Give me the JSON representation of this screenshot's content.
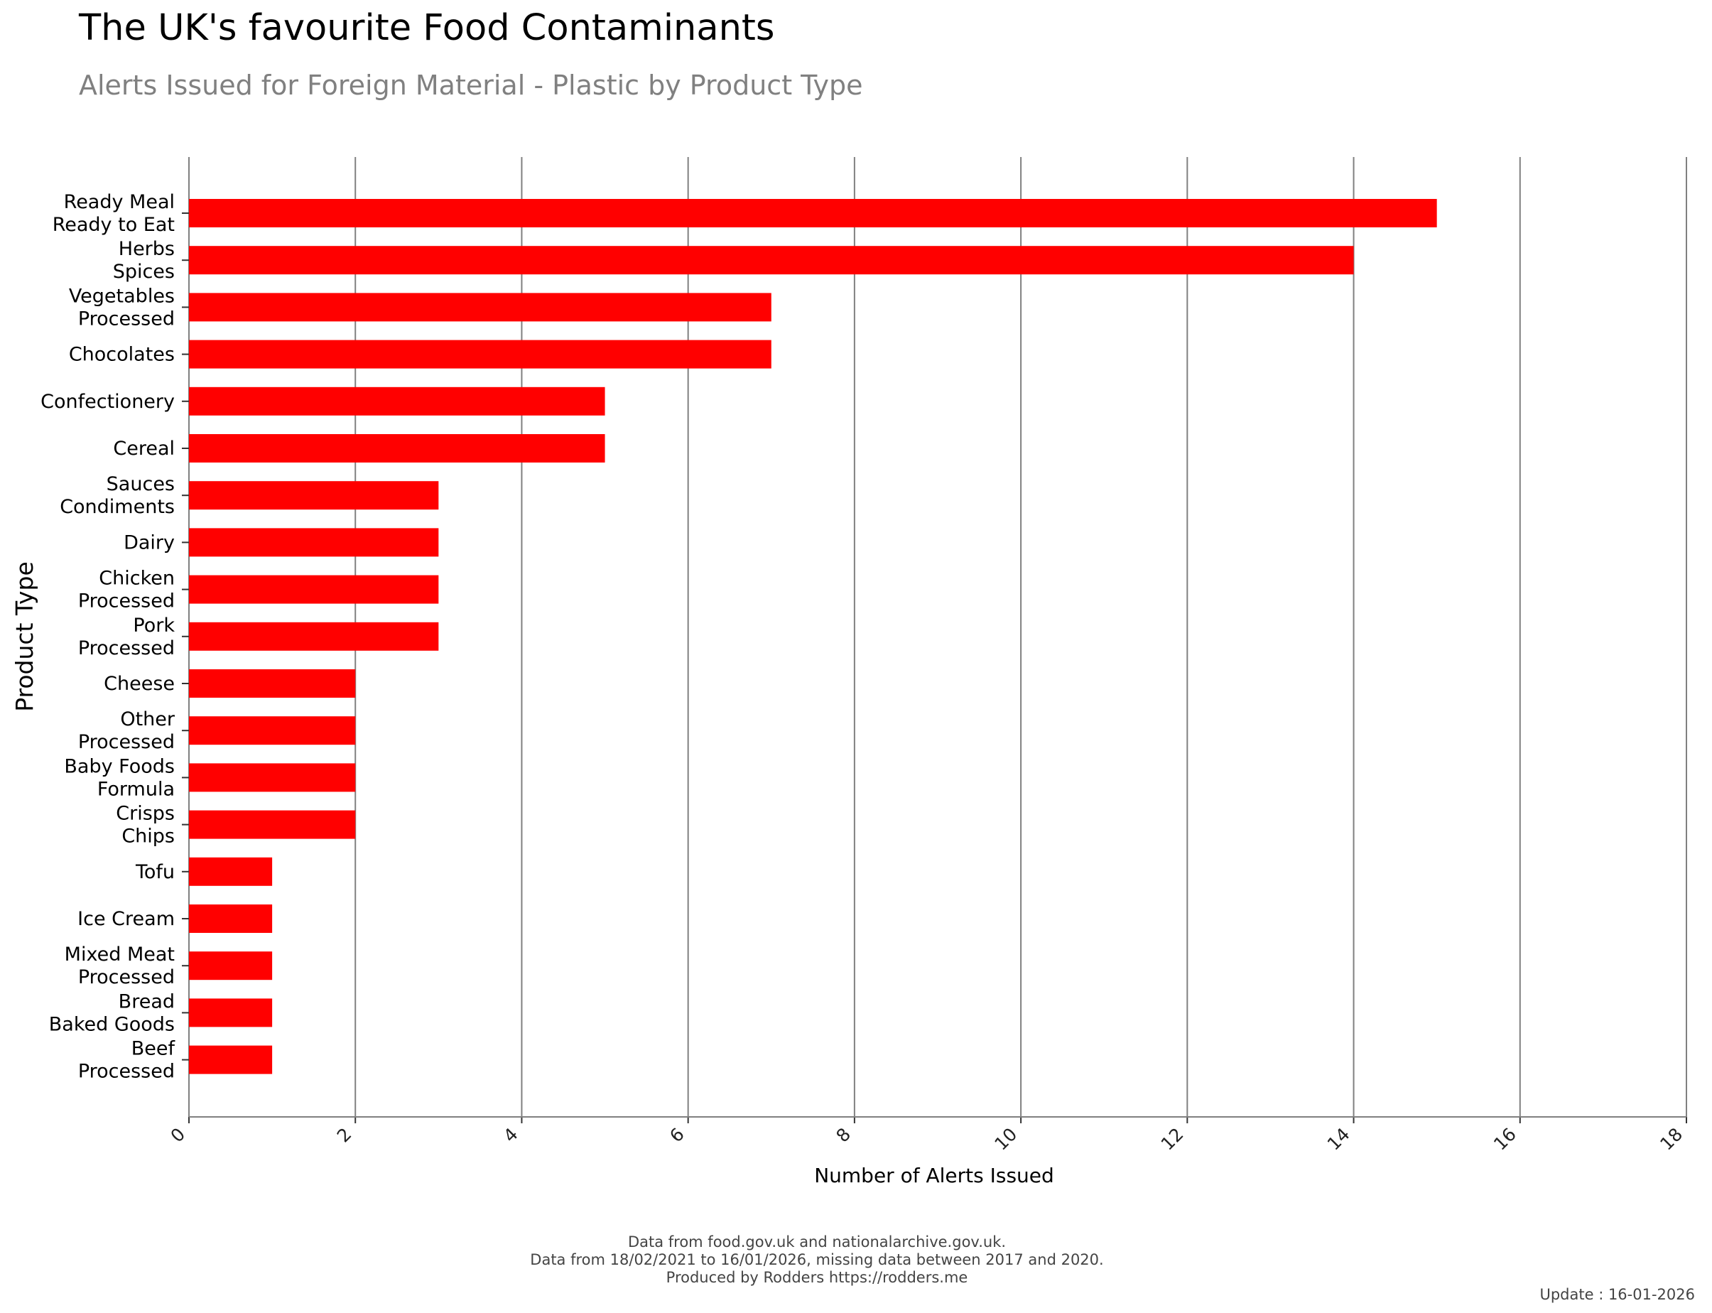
{
  "header": {
    "title": "The UK's favourite Food Contaminants",
    "subtitle": "Alerts Issued for Foreign Material - Plastic by Product Type"
  },
  "footer": {
    "line1": "Data from food.gov.uk and nationalarchive.gov.uk.",
    "line2": "Data from 18/02/2021 to 16/01/2026, missing data between 2017 and 2020.",
    "line3": "Produced by Rodders https://rodders.me",
    "update": "Update : 16-01-2026"
  },
  "colors": {
    "bar": "#ff0000",
    "grid": "#808080",
    "title": "#000000",
    "subtitle": "#808080"
  },
  "chart_data": {
    "type": "bar",
    "orientation": "horizontal",
    "title": "The UK's favourite Food Contaminants",
    "subtitle": "Alerts Issued for Foreign Material - Plastic by Product Type",
    "xlabel": "Number of Alerts Issued",
    "ylabel": "Product Type",
    "xlim": [
      0,
      18
    ],
    "xticks": [
      0,
      2,
      4,
      6,
      8,
      10,
      12,
      14,
      16,
      18
    ],
    "grid": "vertical",
    "legend": "none",
    "categories": [
      [
        "Ready Meal",
        "Ready to Eat"
      ],
      [
        "Herbs",
        "Spices"
      ],
      [
        "Vegetables",
        "Processed"
      ],
      [
        "Chocolates"
      ],
      [
        "Confectionery"
      ],
      [
        "Cereal"
      ],
      [
        "Sauces",
        "Condiments"
      ],
      [
        "Dairy"
      ],
      [
        "Chicken",
        "Processed"
      ],
      [
        "Pork",
        "Processed"
      ],
      [
        "Cheese"
      ],
      [
        "Other",
        "Processed"
      ],
      [
        "Baby Foods",
        "Formula"
      ],
      [
        "Crisps",
        "Chips"
      ],
      [
        "Tofu"
      ],
      [
        "Ice Cream"
      ],
      [
        "Mixed Meat",
        "Processed"
      ],
      [
        "Bread",
        "Baked Goods"
      ],
      [
        "Beef",
        "Processed"
      ]
    ],
    "values": [
      15,
      14,
      7,
      7,
      5,
      5,
      3,
      3,
      3,
      3,
      2,
      2,
      2,
      2,
      1,
      1,
      1,
      1,
      1
    ]
  }
}
